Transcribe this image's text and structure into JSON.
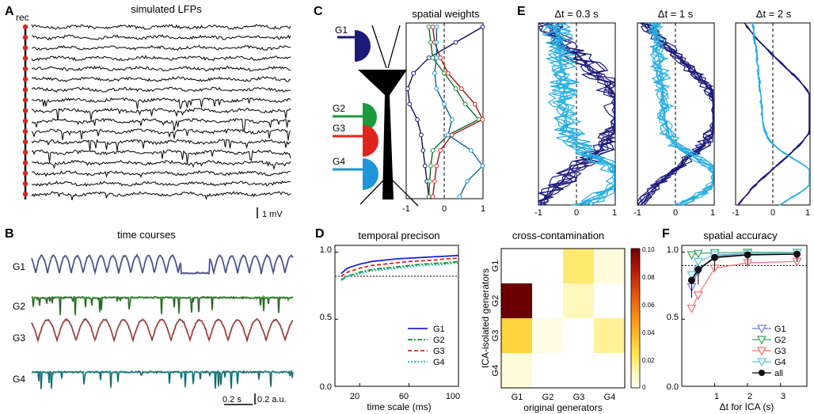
{
  "panels": {
    "A": {
      "letter": "A",
      "title": "simulated LFPs",
      "rec_label": "rec",
      "scale_label": "1 mV",
      "n_traces": 17
    },
    "B": {
      "letter": "B",
      "title": "time courses",
      "scale_time": "0.2 s",
      "scale_amp": "0.2 a.u.",
      "generators": [
        "G1",
        "G2",
        "G3",
        "G4"
      ],
      "colors": [
        "#7b7fd0",
        "#4db848",
        "#e46a6a",
        "#2bbcc4"
      ]
    },
    "C": {
      "letter": "C",
      "title": "spatial weights",
      "generators": [
        "G1",
        "G2",
        "G3",
        "G4"
      ],
      "colors": [
        "#1c1a7a",
        "#1a9a3c",
        "#e0231c",
        "#1e96d8"
      ],
      "xticks": [
        "-1",
        "0",
        "1"
      ]
    },
    "D": {
      "letter": "D"
    },
    "E": {
      "letter": "E",
      "subplots": [
        {
          "title": "Δt = 0.3 s"
        },
        {
          "title": "Δt = 1 s"
        },
        {
          "title": "Δt = 2 s"
        }
      ],
      "xticks": [
        "-1",
        "0",
        "1"
      ],
      "colors": [
        "#1c1a7a",
        "#29aee0"
      ]
    },
    "F": {
      "letter": "F"
    }
  },
  "chart_data": [
    {
      "id": "temporal-precision",
      "type": "line",
      "title": "temporal precison",
      "xlabel": "time scale (ms)",
      "xlim": [
        0,
        100
      ],
      "ylim": [
        0,
        1.05
      ],
      "xticks": [
        "20",
        "60",
        "100"
      ],
      "yticks": [
        "0.0",
        "0.5",
        "1.0"
      ],
      "x": [
        5,
        10,
        20,
        30,
        40,
        50,
        60,
        70,
        80,
        90,
        100
      ],
      "series": [
        {
          "name": "G1",
          "color": "#1f22d8",
          "style": "solid",
          "values": [
            0.84,
            0.88,
            0.91,
            0.93,
            0.94,
            0.95,
            0.955,
            0.96,
            0.965,
            0.97,
            0.975
          ]
        },
        {
          "name": "G2",
          "color": "#1a8a2a",
          "style": "dashdot",
          "values": [
            0.79,
            0.82,
            0.85,
            0.87,
            0.88,
            0.89,
            0.9,
            0.91,
            0.915,
            0.92,
            0.93
          ]
        },
        {
          "name": "G3",
          "color": "#e0231c",
          "style": "dashed",
          "values": [
            0.82,
            0.85,
            0.88,
            0.9,
            0.91,
            0.92,
            0.93,
            0.935,
            0.94,
            0.95,
            0.955
          ]
        },
        {
          "name": "G4",
          "color": "#1fb8b8",
          "style": "dotted",
          "values": [
            0.8,
            0.82,
            0.84,
            0.86,
            0.87,
            0.88,
            0.89,
            0.9,
            0.905,
            0.91,
            0.92
          ]
        }
      ],
      "reference_line": 0.82
    },
    {
      "id": "cross-contamination",
      "type": "heatmap",
      "title": "cross-contamination",
      "xlabel": "original generators",
      "ylabel": "ICA-isolated generators",
      "columns": [
        "G1",
        "G2",
        "G3",
        "G4"
      ],
      "rows": [
        "G1",
        "G2",
        "G3",
        "G4"
      ],
      "values": [
        [
          0,
          0,
          0.02,
          0.005
        ],
        [
          0.1,
          0,
          0.01,
          0
        ],
        [
          0.03,
          0.004,
          0,
          0.015
        ],
        [
          0.006,
          0,
          0,
          0
        ]
      ],
      "colorbar_ticks": [
        "0.10",
        "0.08",
        "0.06",
        "0.04",
        "0.02",
        "0"
      ],
      "vmin": 0,
      "vmax": 0.1
    },
    {
      "id": "spatial-accuracy",
      "type": "line",
      "title": "spatial accuracy",
      "xlabel": "Δt for ICA (s)",
      "xlim": [
        0,
        3.8
      ],
      "ylim": [
        0,
        1.05
      ],
      "xticks": [
        "1",
        "2",
        "3"
      ],
      "yticks": [
        "0.0",
        "0.5",
        "1.0"
      ],
      "x": [
        0.3,
        0.5,
        1,
        2,
        3.5
      ],
      "series": [
        {
          "name": "G1",
          "color": "#6f79e8",
          "marker": "triangle-down",
          "values": [
            0.74,
            0.86,
            0.97,
            0.99,
            0.995
          ]
        },
        {
          "name": "G2",
          "color": "#3aa65a",
          "marker": "triangle-down",
          "values": [
            0.98,
            0.99,
            0.995,
            0.998,
            0.998
          ]
        },
        {
          "name": "G3",
          "color": "#f07070",
          "marker": "triangle-down",
          "values": [
            0.58,
            0.68,
            0.88,
            0.92,
            0.93
          ]
        },
        {
          "name": "G4",
          "color": "#5ec8e0",
          "marker": "triangle-down",
          "values": [
            0.83,
            0.93,
            0.98,
            0.99,
            0.995
          ]
        },
        {
          "name": "all",
          "color": "#000000",
          "marker": "circle",
          "values": [
            0.79,
            0.87,
            0.96,
            0.98,
            0.985
          ]
        }
      ],
      "reference_line": 0.9
    }
  ]
}
